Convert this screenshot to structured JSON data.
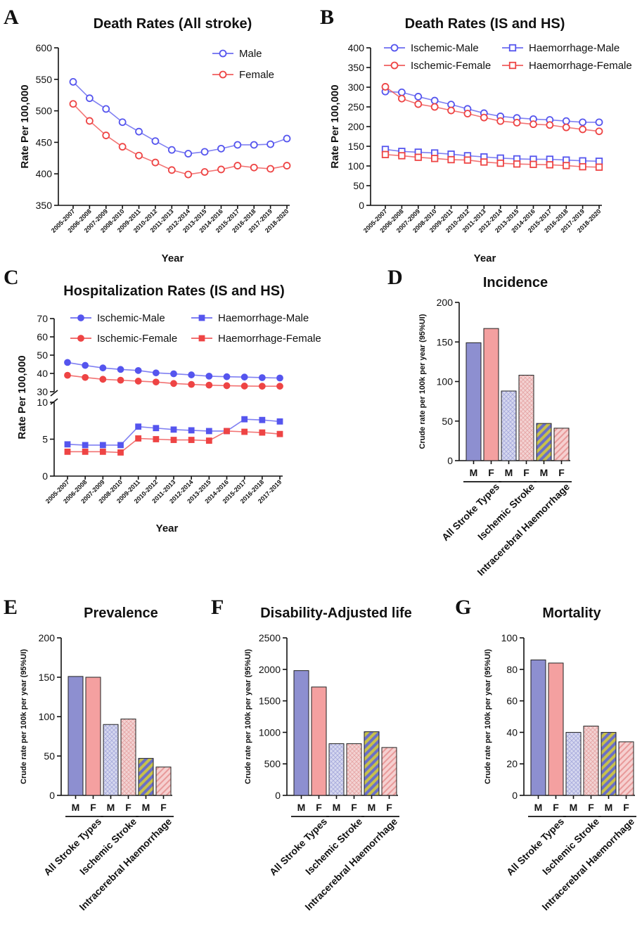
{
  "colors": {
    "male": "#5555ee",
    "female": "#ee4444",
    "barMale": "#8d8fd0",
    "barFemale": "#f4a0a0",
    "hatchMaleBg": "#d6d8ef",
    "hatchFemaleBg": "#f3d3d3",
    "stripeYellow": "#c8c14a",
    "stripeBlue": "#6a6fc8"
  },
  "chart_data": [
    {
      "id": "A",
      "panel_label": "A",
      "type": "line",
      "title": "Death Rates (All stroke)",
      "xlabel": "Year",
      "ylabel": "Rate Per 100,000",
      "ylim": [
        350,
        600
      ],
      "yticks": [
        350,
        400,
        450,
        500,
        550,
        600
      ],
      "categories": [
        "2005-2007",
        "2006-2008",
        "2007-2009",
        "2008-2010",
        "2009-2011",
        "2010-2012",
        "2011-2013",
        "2012-2014",
        "2013-2015",
        "2014-2016",
        "2015-2017",
        "2016-2018",
        "2017-2019",
        "2018-2020"
      ],
      "series": [
        {
          "name": "Male",
          "color_key": "male",
          "marker": "circle-open",
          "values": [
            546,
            520,
            503,
            482,
            467,
            452,
            438,
            432,
            435,
            440,
            446,
            446,
            447,
            456
          ]
        },
        {
          "name": "Female",
          "color_key": "female",
          "marker": "circle-open",
          "values": [
            511,
            484,
            461,
            443,
            429,
            418,
            406,
            399,
            403,
            407,
            413,
            410,
            408,
            413
          ]
        }
      ]
    },
    {
      "id": "B",
      "panel_label": "B",
      "type": "line",
      "title": "Death Rates (IS and HS)",
      "xlabel": "Year",
      "ylabel": "Rate Per 100,000",
      "ylim": [
        0,
        400
      ],
      "yticks": [
        0,
        50,
        100,
        150,
        200,
        250,
        300,
        350,
        400
      ],
      "categories": [
        "2005-2007",
        "2006-2008",
        "2007-2009",
        "2008-2010",
        "2009-2011",
        "2010-2012",
        "2011-2013",
        "2012-2014",
        "2013-2015",
        "2014-2016",
        "2015-2017",
        "2016-2018",
        "2017-2019",
        "2018-2020"
      ],
      "series": [
        {
          "name": "Ischemic-Male",
          "color_key": "male",
          "marker": "circle-open",
          "values": [
            289,
            287,
            276,
            266,
            256,
            245,
            234,
            226,
            222,
            219,
            217,
            214,
            211,
            211
          ]
        },
        {
          "name": "Ischemic-Female",
          "color_key": "female",
          "marker": "circle-open",
          "values": [
            301,
            271,
            257,
            250,
            241,
            233,
            223,
            214,
            210,
            206,
            204,
            198,
            193,
            188
          ]
        },
        {
          "name": "Haemorrhage-Male",
          "color_key": "male",
          "marker": "square-open",
          "values": [
            142,
            137,
            135,
            133,
            130,
            126,
            123,
            120,
            118,
            117,
            117,
            115,
            113,
            112
          ]
        },
        {
          "name": "Haemorrhage-Female",
          "color_key": "female",
          "marker": "square-open",
          "values": [
            129,
            126,
            122,
            119,
            116,
            115,
            110,
            107,
            105,
            104,
            103,
            101,
            98,
            97
          ]
        }
      ]
    },
    {
      "id": "C",
      "panel_label": "C",
      "type": "line",
      "title": "Hospitalization Rates (IS and HS)",
      "xlabel": "Year",
      "ylabel": "Rate Per 100,000",
      "broken_axis": {
        "lower": [
          0,
          10
        ],
        "upper": [
          30,
          70
        ]
      },
      "yticks_lower": [
        0,
        5,
        10
      ],
      "yticks_upper": [
        30,
        40,
        50,
        60,
        70
      ],
      "categories": [
        "2005-2007",
        "2006-2008",
        "2007-2009",
        "2008-2010",
        "2009-2011",
        "2010-2012",
        "2011-2013",
        "2012-2014",
        "2013-2015",
        "2014-2016",
        "2015-2017",
        "2016-2018",
        "2017-2019"
      ],
      "series": [
        {
          "name": "Ischemic-Male",
          "color_key": "male",
          "marker": "circle-filled",
          "values": [
            46,
            44.4,
            43,
            42.2,
            41.6,
            40.3,
            39.8,
            39.2,
            38.5,
            38.2,
            38,
            37.7,
            37.5
          ]
        },
        {
          "name": "Ischemic-Female",
          "color_key": "female",
          "marker": "circle-filled",
          "values": [
            39,
            37.8,
            36.8,
            36.3,
            35.8,
            35.3,
            34.5,
            34,
            33.6,
            33.3,
            33.1,
            33,
            33
          ]
        },
        {
          "name": "Haemorrhage-Male",
          "color_key": "male",
          "marker": "square-filled",
          "values": [
            4.3,
            4.2,
            4.2,
            4.2,
            6.7,
            6.5,
            6.3,
            6.2,
            6.1,
            6.1,
            7.7,
            7.6,
            7.4
          ]
        },
        {
          "name": "Haemorrhage-Female",
          "color_key": "female",
          "marker": "square-filled",
          "values": [
            3.3,
            3.3,
            3.3,
            3.2,
            5.1,
            5,
            4.9,
            4.9,
            4.8,
            6.1,
            6,
            5.9,
            5.7
          ]
        }
      ]
    },
    {
      "id": "D",
      "panel_label": "D",
      "type": "bar",
      "title": "Incidence",
      "ylabel": "Crude rate per 100k per year (95%UI)",
      "ylim": [
        0,
        200
      ],
      "yticks": [
        0,
        50,
        100,
        150,
        200
      ],
      "sex_labels": [
        "M",
        "F"
      ],
      "groups": [
        "All Stroke Types",
        "Ischemic Stroke",
        "Intracerebral Haemorrhage"
      ],
      "values": [
        149,
        167,
        88,
        108,
        47,
        41
      ]
    },
    {
      "id": "E",
      "panel_label": "E",
      "type": "bar",
      "title": "Prevalence",
      "ylabel": "Crude rate per 100k per year (95%UI)",
      "ylim": [
        0,
        200
      ],
      "yticks": [
        0,
        50,
        100,
        150,
        200
      ],
      "sex_labels": [
        "M",
        "F"
      ],
      "groups": [
        "All Stroke Types",
        "Ischemic Stroke",
        "Intracerebral Haemorrhage"
      ],
      "values": [
        151,
        150,
        90,
        97,
        47,
        36
      ]
    },
    {
      "id": "F",
      "panel_label": "F",
      "type": "bar",
      "title": "Disability-Adjusted life",
      "ylabel": "Crude rate per 100k per year (95%UI)",
      "ylim": [
        0,
        2500
      ],
      "yticks": [
        0,
        500,
        1000,
        1500,
        2000,
        2500
      ],
      "sex_labels": [
        "M",
        "F"
      ],
      "groups": [
        "All Stroke Types",
        "Ischemic Stroke",
        "Intracerebral Haemorrhage"
      ],
      "values": [
        1980,
        1720,
        820,
        820,
        1010,
        760
      ]
    },
    {
      "id": "G",
      "panel_label": "G",
      "type": "bar",
      "title": "Mortality",
      "ylabel": "Crude rate per 100k per year (95%UI)",
      "ylim": [
        0,
        100
      ],
      "yticks": [
        0,
        20,
        40,
        60,
        80,
        100
      ],
      "sex_labels": [
        "M",
        "F"
      ],
      "groups": [
        "All Stroke Types",
        "Ischemic Stroke",
        "Intracerebral Haemorrhage"
      ],
      "values": [
        86,
        84,
        40,
        44,
        40,
        34
      ]
    }
  ]
}
